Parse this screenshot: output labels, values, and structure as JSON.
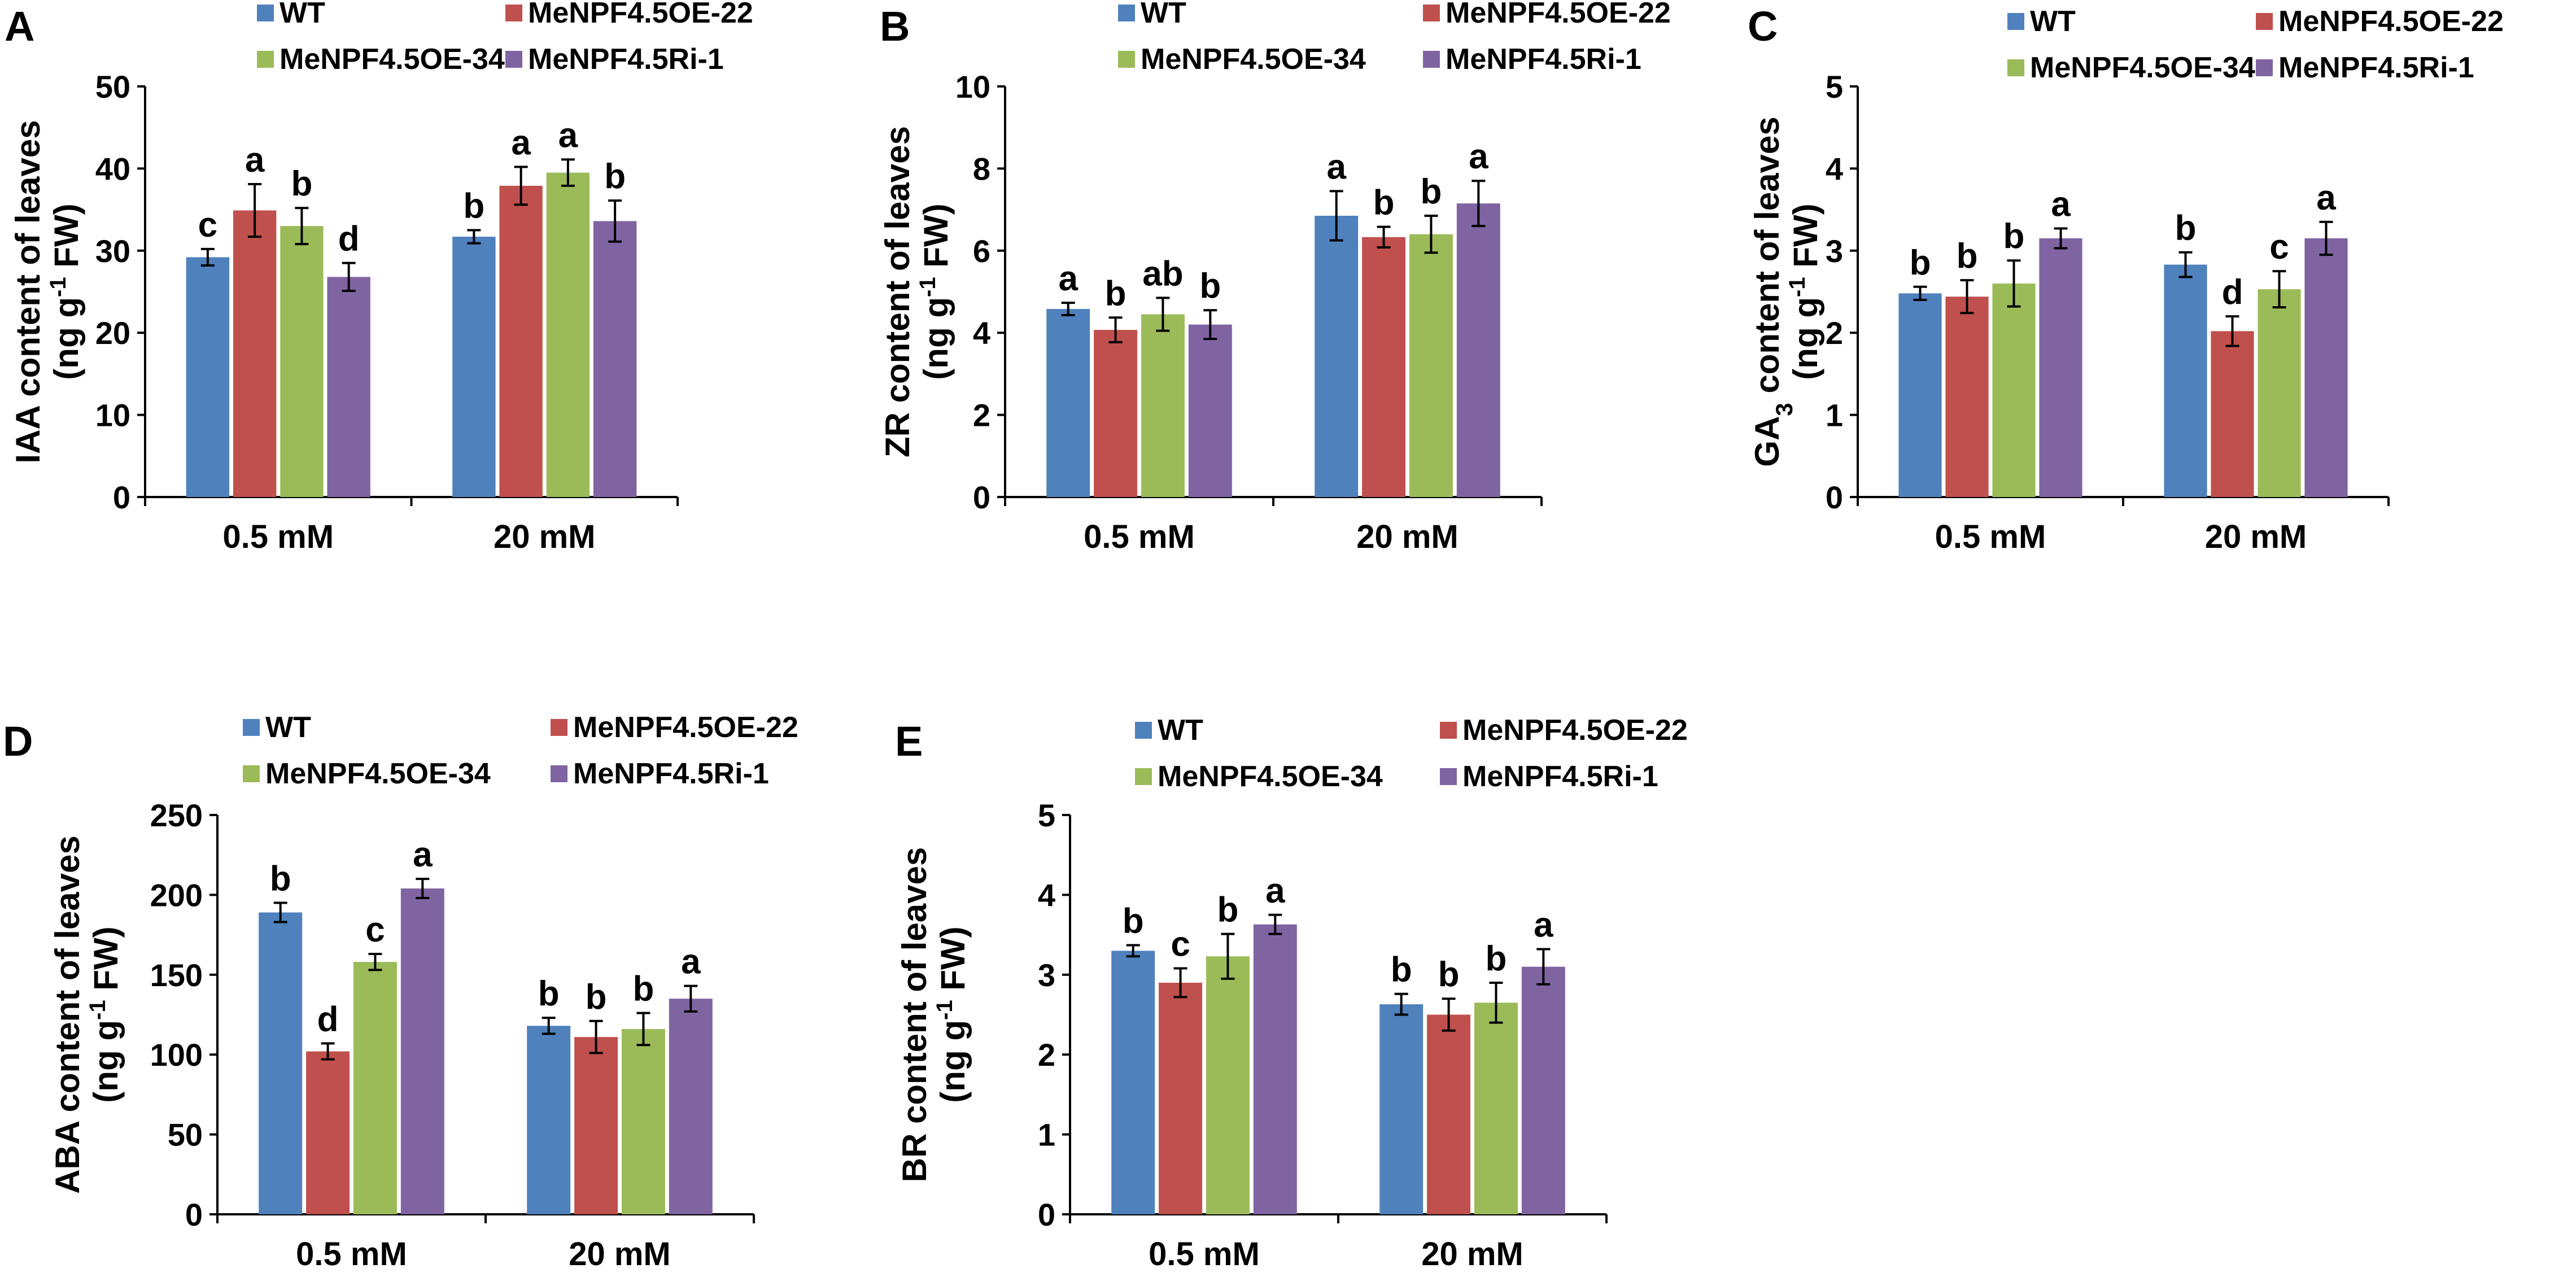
{
  "figure": {
    "series_colors": {
      "WT": "#4f81bd",
      "MeNPF4.5OE-22": "#c0504d",
      "MeNPF4.5OE-34": "#9bbb59",
      "MeNPF4.5Ri-1": "#8064a2"
    }
  },
  "chart_data": [
    {
      "panel": "A",
      "type": "bar",
      "title": "",
      "ylabel_main": "IAA  content of leaves",
      "ylabel_unit_pre": "(ng g",
      "ylabel_unit_sup": "-1",
      "ylabel_unit_post": " FW)",
      "xlabel": "",
      "categories": [
        "0.5 mM",
        "20 mM"
      ],
      "ylim": [
        0,
        50
      ],
      "yticks": [
        0,
        10,
        20,
        30,
        40,
        50
      ],
      "legend": [
        "WT",
        "MeNPF4.5OE-22",
        "MeNPF4.5OE-34",
        "MeNPF4.5Ri-1"
      ],
      "series": [
        {
          "name": "WT",
          "values": [
            29.2,
            31.7
          ],
          "errors": [
            1.0,
            0.8
          ],
          "letters": [
            "c",
            "b"
          ]
        },
        {
          "name": "MeNPF4.5OE-22",
          "values": [
            34.9,
            37.9
          ],
          "errors": [
            3.2,
            2.3
          ],
          "letters": [
            "a",
            "a"
          ]
        },
        {
          "name": "MeNPF4.5OE-34",
          "values": [
            33.0,
            39.5
          ],
          "errors": [
            2.2,
            1.6
          ],
          "letters": [
            "b",
            "a"
          ]
        },
        {
          "name": "MeNPF4.5Ri-1",
          "values": [
            26.8,
            33.6
          ],
          "errors": [
            1.7,
            2.5
          ],
          "letters": [
            "d",
            "b"
          ]
        }
      ]
    },
    {
      "panel": "B",
      "type": "bar",
      "title": "",
      "ylabel_main": "ZR  content of leaves",
      "ylabel_unit_pre": "(ng g",
      "ylabel_unit_sup": "-1",
      "ylabel_unit_post": " FW)",
      "xlabel": "",
      "categories": [
        "0.5 mM",
        "20 mM"
      ],
      "ylim": [
        0,
        10
      ],
      "yticks": [
        0,
        2,
        4,
        6,
        8,
        10
      ],
      "legend": [
        "WT",
        "MeNPF4.5OE-22",
        "MeNPF4.5OE-34",
        "MeNPF4.5Ri-1"
      ],
      "series": [
        {
          "name": "WT",
          "values": [
            4.58,
            6.85
          ],
          "errors": [
            0.15,
            0.6
          ],
          "letters": [
            "a",
            "a"
          ]
        },
        {
          "name": "MeNPF4.5OE-22",
          "values": [
            4.07,
            6.33
          ],
          "errors": [
            0.3,
            0.25
          ],
          "letters": [
            "b",
            "b"
          ]
        },
        {
          "name": "MeNPF4.5OE-34",
          "values": [
            4.45,
            6.4
          ],
          "errors": [
            0.4,
            0.45
          ],
          "letters": [
            "ab",
            "b"
          ]
        },
        {
          "name": "MeNPF4.5Ri-1",
          "values": [
            4.2,
            7.15
          ],
          "errors": [
            0.35,
            0.55
          ],
          "letters": [
            "b",
            "a"
          ]
        }
      ]
    },
    {
      "panel": "C",
      "type": "bar",
      "title": "",
      "ylabel_main": "GA",
      "ylabel_main_sub": "3",
      "ylabel_main_post": "  content of leaves",
      "ylabel_unit_pre": "(ng g",
      "ylabel_unit_sup": "-1",
      "ylabel_unit_post": " FW)",
      "xlabel": "",
      "categories": [
        "0.5 mM",
        "20 mM"
      ],
      "ylim": [
        0,
        5
      ],
      "yticks": [
        0,
        1,
        2,
        3,
        4,
        5
      ],
      "legend": [
        "WT",
        "MeNPF4.5OE-22",
        "MeNPF4.5OE-34",
        "MeNPF4.5Ri-1"
      ],
      "series": [
        {
          "name": "WT",
          "values": [
            2.48,
            2.83
          ],
          "errors": [
            0.08,
            0.15
          ],
          "letters": [
            "b",
            "b"
          ]
        },
        {
          "name": "MeNPF4.5OE-22",
          "values": [
            2.44,
            2.02
          ],
          "errors": [
            0.2,
            0.18
          ],
          "letters": [
            "b",
            "d"
          ]
        },
        {
          "name": "MeNPF4.5OE-34",
          "values": [
            2.6,
            2.53
          ],
          "errors": [
            0.28,
            0.22
          ],
          "letters": [
            "b",
            "c"
          ]
        },
        {
          "name": "MeNPF4.5Ri-1",
          "values": [
            3.15,
            3.15
          ],
          "errors": [
            0.12,
            0.2
          ],
          "letters": [
            "a",
            "a"
          ]
        }
      ]
    },
    {
      "panel": "D",
      "type": "bar",
      "title": "",
      "ylabel_main": "ABA  content of leaves",
      "ylabel_unit_pre": "(ng g",
      "ylabel_unit_sup": "-1",
      "ylabel_unit_post": " FW)",
      "xlabel": "",
      "categories": [
        "0.5 mM",
        "20 mM"
      ],
      "ylim": [
        0,
        250
      ],
      "yticks": [
        0,
        50,
        100,
        150,
        200,
        250
      ],
      "legend": [
        "WT",
        "MeNPF4.5OE-22",
        "MeNPF4.5OE-34",
        "MeNPF4.5Ri-1"
      ],
      "series": [
        {
          "name": "WT",
          "values": [
            189,
            118
          ],
          "errors": [
            6,
            5
          ],
          "letters": [
            "b",
            "b"
          ]
        },
        {
          "name": "MeNPF4.5OE-22",
          "values": [
            102,
            111
          ],
          "errors": [
            5,
            10
          ],
          "letters": [
            "d",
            "b"
          ]
        },
        {
          "name": "MeNPF4.5OE-34",
          "values": [
            158,
            116
          ],
          "errors": [
            5,
            10
          ],
          "letters": [
            "c",
            "b"
          ]
        },
        {
          "name": "MeNPF4.5Ri-1",
          "values": [
            204,
            135
          ],
          "errors": [
            6,
            8
          ],
          "letters": [
            "a",
            "a"
          ]
        }
      ]
    },
    {
      "panel": "E",
      "type": "bar",
      "title": "",
      "ylabel_main": "BR  content of leaves",
      "ylabel_unit_pre": "(ng g",
      "ylabel_unit_sup": "-1",
      "ylabel_unit_post": " FW)",
      "xlabel": "",
      "categories": [
        "0.5 mM",
        "20 mM"
      ],
      "ylim": [
        0,
        5
      ],
      "yticks": [
        0,
        1,
        2,
        3,
        4,
        5
      ],
      "legend": [
        "WT",
        "MeNPF4.5OE-22",
        "MeNPF4.5OE-34",
        "MeNPF4.5Ri-1"
      ],
      "series": [
        {
          "name": "WT",
          "values": [
            3.3,
            2.63
          ],
          "errors": [
            0.07,
            0.13
          ],
          "letters": [
            "b",
            "b"
          ]
        },
        {
          "name": "MeNPF4.5OE-22",
          "values": [
            2.9,
            2.5
          ],
          "errors": [
            0.18,
            0.2
          ],
          "letters": [
            "c",
            "b"
          ]
        },
        {
          "name": "MeNPF4.5OE-34",
          "values": [
            3.23,
            2.65
          ],
          "errors": [
            0.28,
            0.25
          ],
          "letters": [
            "b",
            "b"
          ]
        },
        {
          "name": "MeNPF4.5Ri-1",
          "values": [
            3.63,
            3.1
          ],
          "errors": [
            0.12,
            0.22
          ],
          "letters": [
            "a",
            "a"
          ]
        }
      ]
    }
  ]
}
